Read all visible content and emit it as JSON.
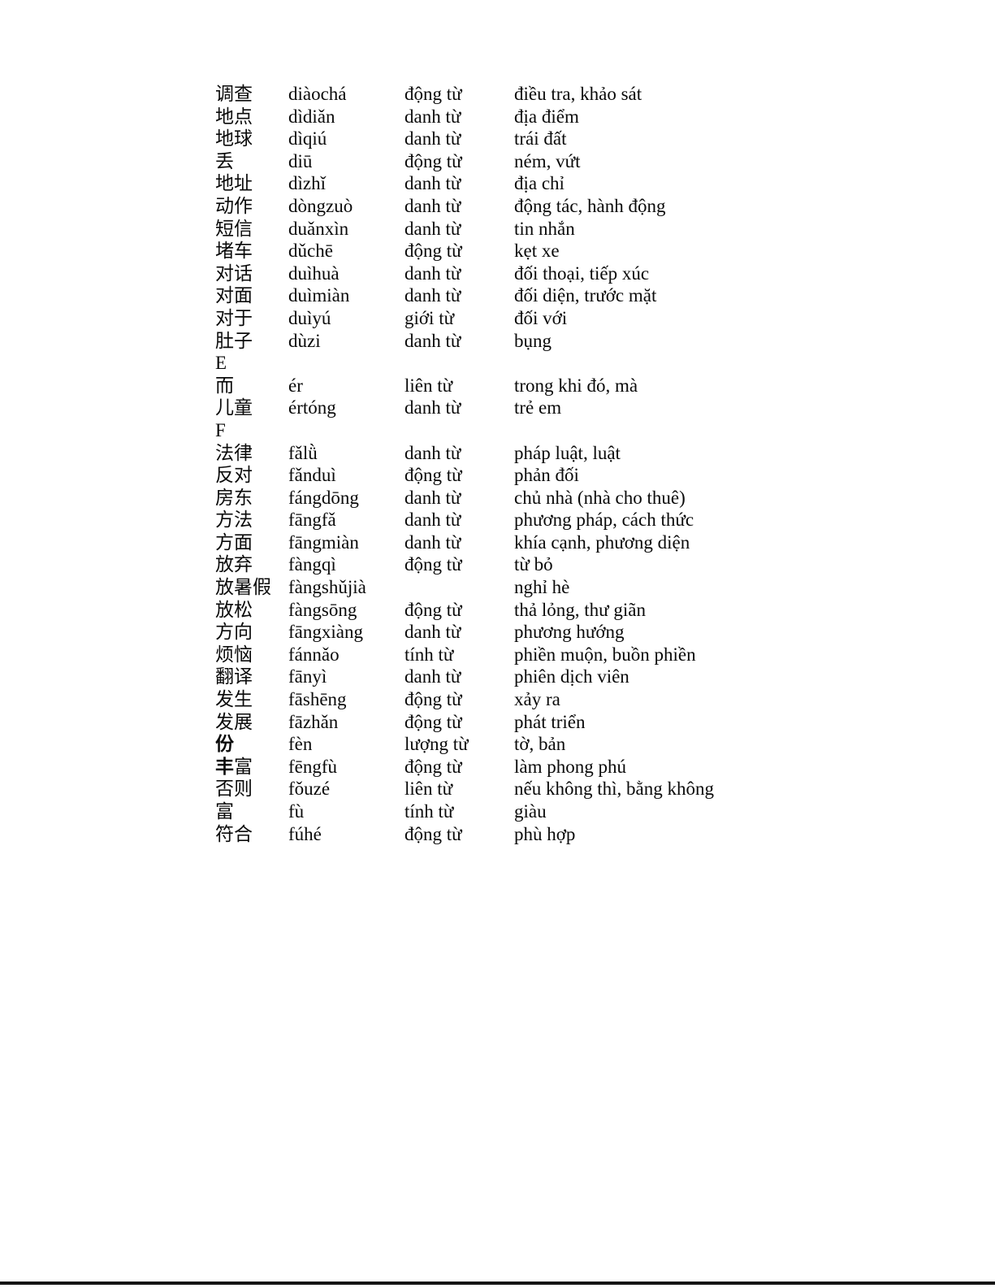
{
  "page": {
    "background": "#ffffff",
    "bottom_edge_line_color": "#151515"
  },
  "vocab_table": {
    "columns": [
      "hanzi",
      "pinyin",
      "part_of_speech",
      "meaning"
    ],
    "rows": [
      {
        "hanzi_bold": "",
        "hanzi": "调查",
        "pinyin": "diàochá",
        "pos": "động từ",
        "meaning": "điều tra, khảo sát"
      },
      {
        "hanzi_bold": "",
        "hanzi": "地点",
        "pinyin": "dìdiǎn",
        "pos": "danh từ",
        "meaning": "địa điểm"
      },
      {
        "hanzi_bold": "",
        "hanzi": "地球",
        "pinyin": "dìqiú",
        "pos": "danh từ",
        "meaning": "trái đất"
      },
      {
        "hanzi_bold": "",
        "hanzi": "丢",
        "pinyin": "diū",
        "pos": "động từ",
        "meaning": "ném, vứt"
      },
      {
        "hanzi_bold": "",
        "hanzi": "地址",
        "pinyin": "dìzhǐ",
        "pos": "danh từ",
        "meaning": "địa chỉ"
      },
      {
        "hanzi_bold": "",
        "hanzi": "动作",
        "pinyin": "dòngzuò",
        "pos": "danh từ",
        "meaning": "động tác, hành động"
      },
      {
        "hanzi_bold": "",
        "hanzi": "短信",
        "pinyin": "duǎnxìn",
        "pos": "danh từ",
        "meaning": "tin nhắn"
      },
      {
        "hanzi_bold": "",
        "hanzi": "堵车",
        "pinyin": "dǔchē",
        "pos": "động từ",
        "meaning": "kẹt xe"
      },
      {
        "hanzi_bold": "",
        "hanzi": "对话",
        "pinyin": "duìhuà",
        "pos": "danh từ",
        "meaning": "đối thoại, tiếp xúc"
      },
      {
        "hanzi_bold": "",
        "hanzi": "对面",
        "pinyin": "duìmiàn",
        "pos": "danh từ",
        "meaning": "đối diện, trước mặt"
      },
      {
        "hanzi_bold": "",
        "hanzi": "对于",
        "pinyin": "duìyú",
        "pos": "giới từ",
        "meaning": "đối với"
      },
      {
        "hanzi_bold": "",
        "hanzi": "肚子",
        "pinyin": "dùzi",
        "pos": "danh từ",
        "meaning": "bụng"
      },
      {
        "hanzi_bold": "",
        "hanzi": "E",
        "pinyin": "",
        "pos": "",
        "meaning": ""
      },
      {
        "hanzi_bold": "",
        "hanzi": "而",
        "pinyin": "ér",
        "pos": "liên từ",
        "meaning": "trong khi đó, mà"
      },
      {
        "hanzi_bold": "",
        "hanzi": "儿童",
        "pinyin": "értóng",
        "pos": "danh từ",
        "meaning": "trẻ em"
      },
      {
        "hanzi_bold": "",
        "hanzi": "F",
        "pinyin": "",
        "pos": "",
        "meaning": ""
      },
      {
        "hanzi_bold": "",
        "hanzi": "法律",
        "pinyin": "fǎlǜ",
        "pos": "danh từ",
        "meaning": "pháp luật, luật"
      },
      {
        "hanzi_bold": "",
        "hanzi": "反对",
        "pinyin": "fǎnduì",
        "pos": "động từ",
        "meaning": "phản đối"
      },
      {
        "hanzi_bold": "",
        "hanzi": "房东",
        "pinyin": "fángdōng",
        "pos": "danh từ",
        "meaning": "chủ nhà (nhà cho thuê)"
      },
      {
        "hanzi_bold": "",
        "hanzi": "方法",
        "pinyin": "fāngfǎ",
        "pos": "danh từ",
        "meaning": "phương pháp, cách thức"
      },
      {
        "hanzi_bold": "",
        "hanzi": "方面",
        "pinyin": "fāngmiàn",
        "pos": "danh từ",
        "meaning": "khía cạnh, phương diện"
      },
      {
        "hanzi_bold": "",
        "hanzi": "放弃",
        "pinyin": "fàngqì",
        "pos": "động từ",
        "meaning": "từ bỏ"
      },
      {
        "hanzi_bold": "",
        "hanzi": "放暑假",
        "pinyin": "fàngshǔjià",
        "pos": "",
        "meaning": "nghỉ hè"
      },
      {
        "hanzi_bold": "",
        "hanzi": "放松",
        "pinyin": "fàngsōng",
        "pos": "động từ",
        "meaning": "thả lỏng, thư giãn"
      },
      {
        "hanzi_bold": "",
        "hanzi": "方向",
        "pinyin": "fāngxiàng",
        "pos": "danh từ",
        "meaning": "phương hướng"
      },
      {
        "hanzi_bold": "",
        "hanzi": "烦恼",
        "pinyin": "fánnǎo",
        "pos": "tính từ",
        "meaning": "phiền muộn, buồn phiền"
      },
      {
        "hanzi_bold": "",
        "hanzi": "翻译",
        "pinyin": "fānyì",
        "pos": "danh từ",
        "meaning": "phiên dịch viên"
      },
      {
        "hanzi_bold": "",
        "hanzi": "发生",
        "pinyin": "fāshēng",
        "pos": "động từ",
        "meaning": "xảy ra"
      },
      {
        "hanzi_bold": "",
        "hanzi": "发展",
        "pinyin": "fāzhǎn",
        "pos": "động từ",
        "meaning": "phát triển"
      },
      {
        "hanzi_bold": "份",
        "hanzi": "",
        "pinyin": "fèn",
        "pos": "lượng từ",
        "meaning": "tờ, bản"
      },
      {
        "hanzi_bold": "丰",
        "hanzi": "富",
        "pinyin": "fēngfù",
        "pos": "động từ",
        "meaning": "làm phong phú"
      },
      {
        "hanzi_bold": "",
        "hanzi": "否则",
        "pinyin": "fǒuzé",
        "pos": "liên từ",
        "meaning": "nếu không thì, bằng không"
      },
      {
        "hanzi_bold": "",
        "hanzi": "富",
        "pinyin": "fù",
        "pos": "tính từ",
        "meaning": "giàu"
      },
      {
        "hanzi_bold": "",
        "hanzi": "符合",
        "pinyin": "fúhé",
        "pos": "động từ",
        "meaning": "phù hợp"
      }
    ]
  }
}
